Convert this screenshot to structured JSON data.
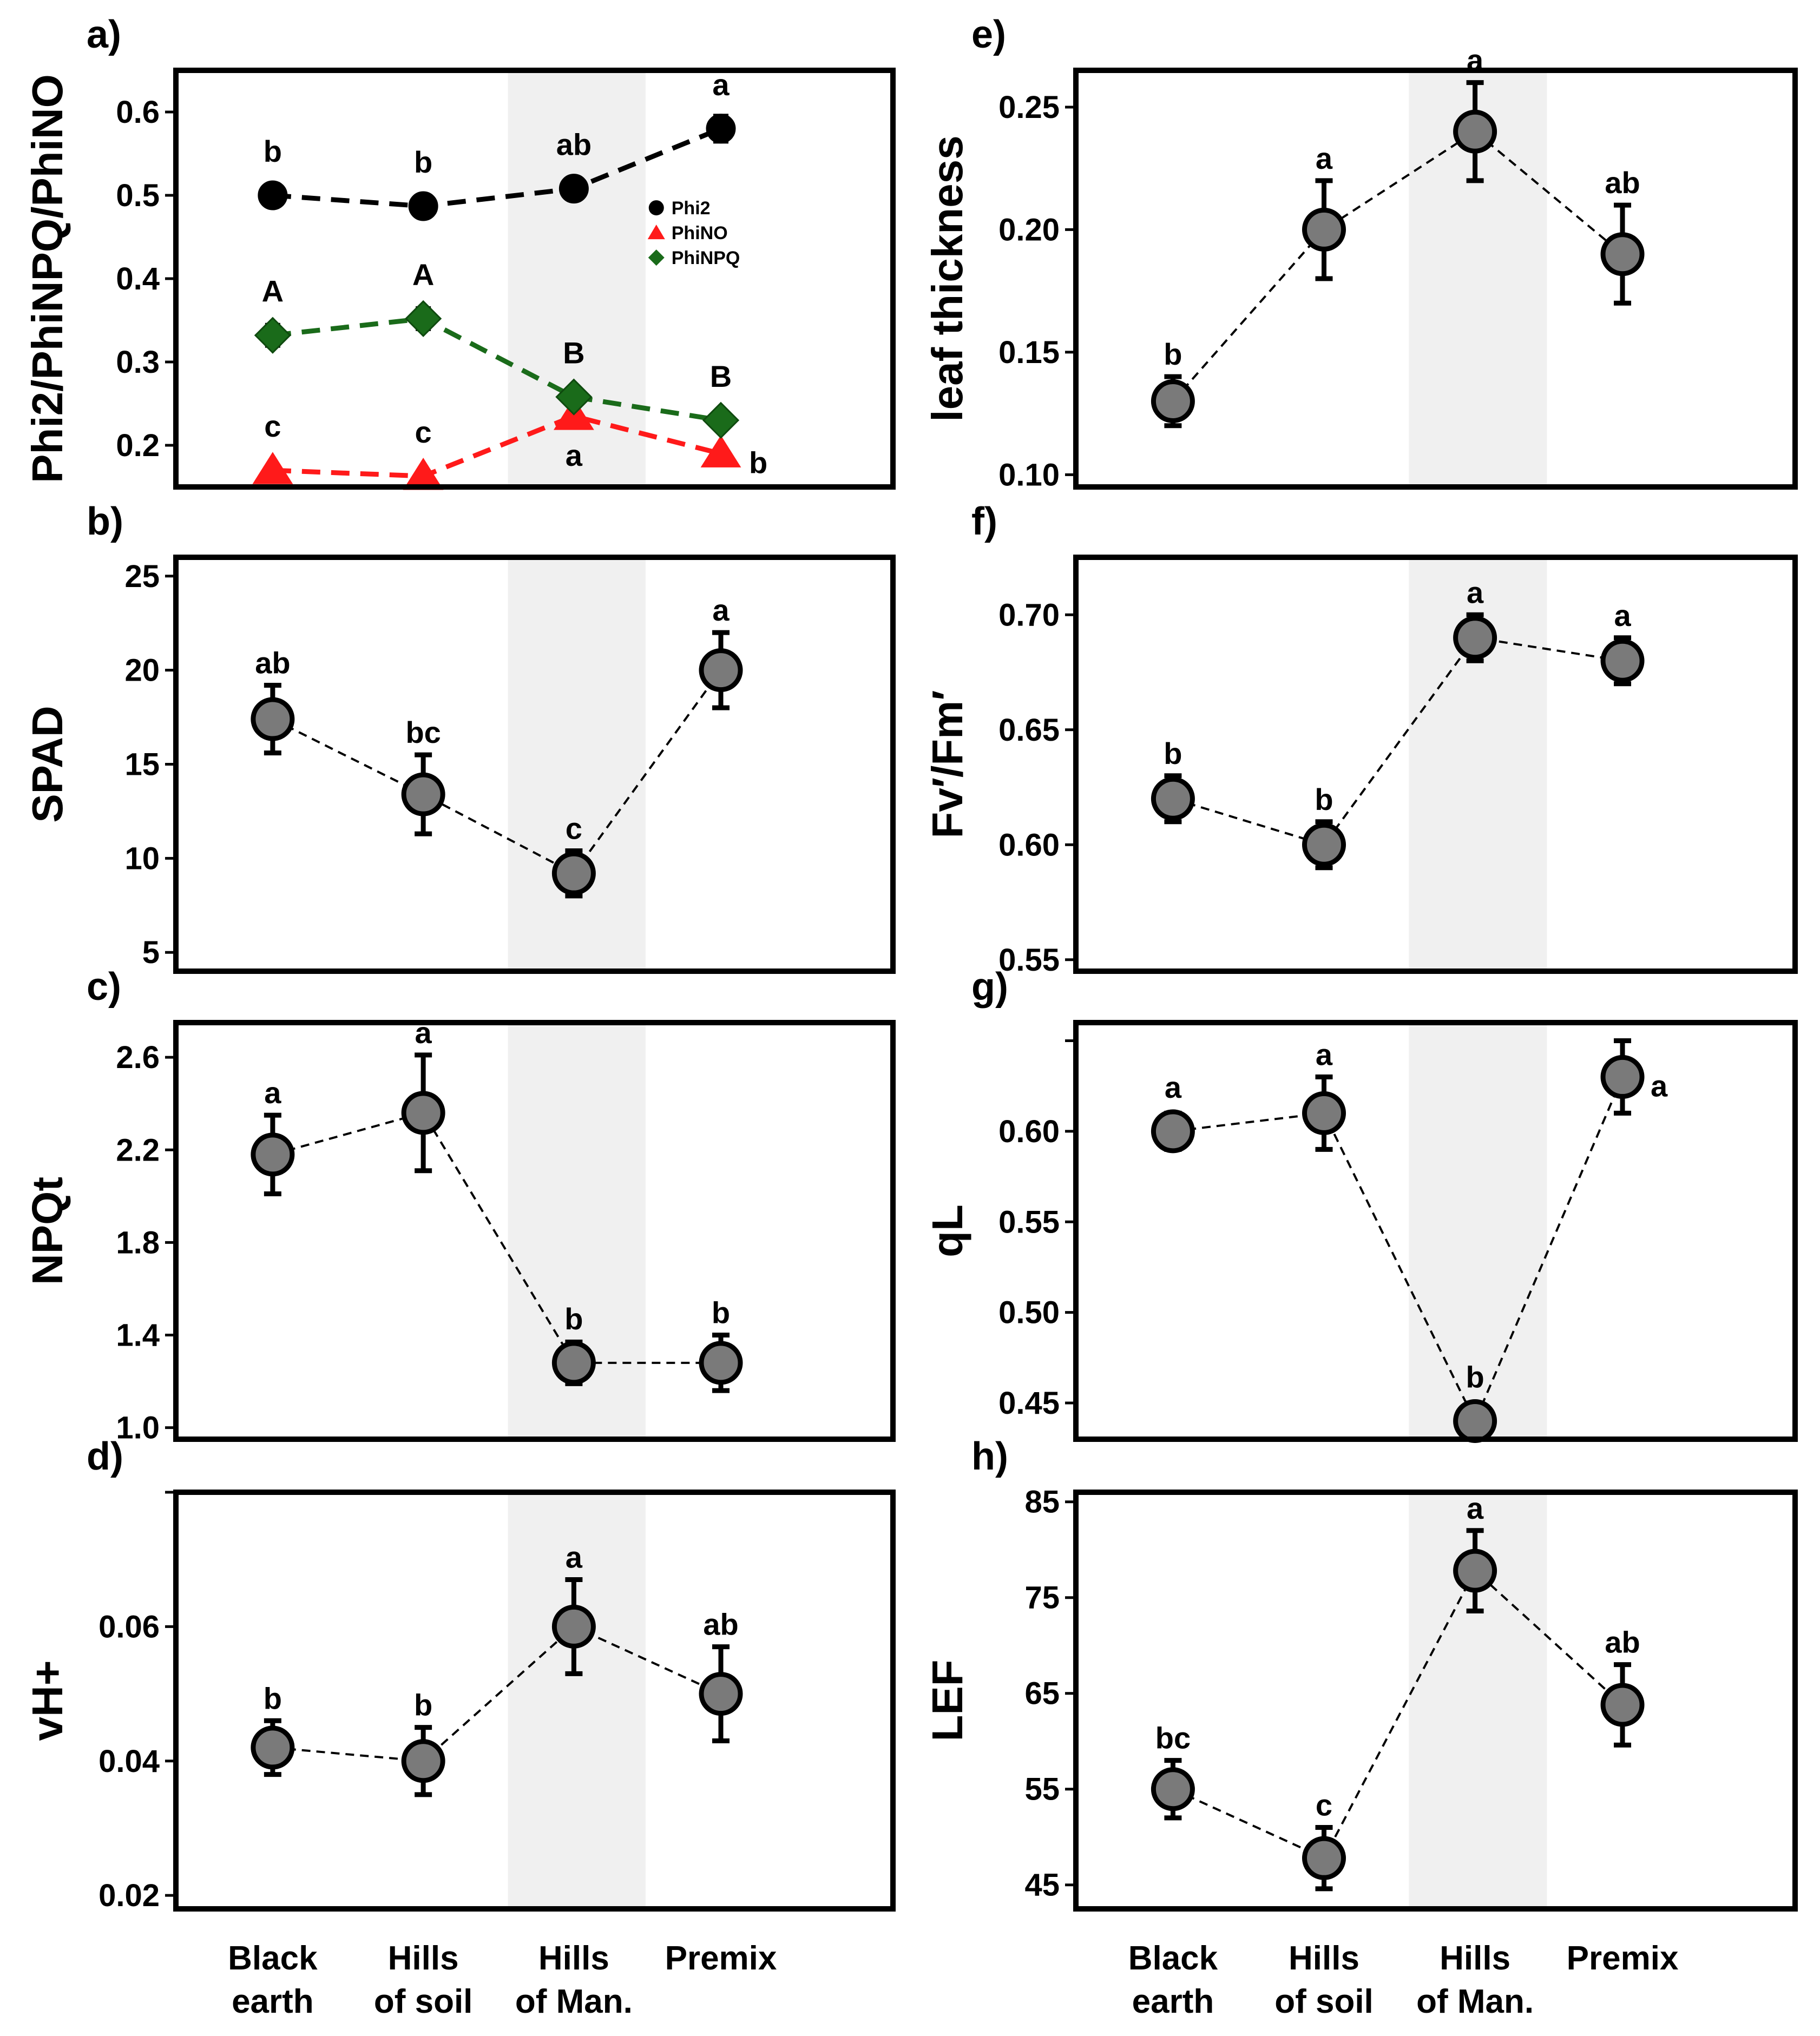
{
  "figure": {
    "x_categories": [
      {
        "line1": "Black",
        "line2": "earth"
      },
      {
        "line1": "Hills",
        "line2": "of soil"
      },
      {
        "line1": "Hills",
        "line2": "of Man."
      },
      {
        "line1": "Premix",
        "line2": ""
      }
    ],
    "shaded_category": "Hills of Man."
  },
  "chart_data": [
    {
      "panel": "a)",
      "type": "line",
      "ylabel": "Phi2/PhiNPQ/PhiNO",
      "ylim": [
        0.15,
        0.65
      ],
      "yticks": [
        0.2,
        0.3,
        0.4,
        0.5,
        0.6
      ],
      "ytick_labels": [
        "0.2",
        "0.3",
        "0.4",
        "0.5",
        "0.6"
      ],
      "categories": [
        "Black earth",
        "Hills of soil",
        "Hills of Man.",
        "Premix"
      ],
      "legend": {
        "placement": "top-right"
      },
      "series": [
        {
          "name": "Phi2",
          "color": "#000000",
          "marker": "circle",
          "values": [
            0.5,
            0.487,
            0.508,
            0.58
          ],
          "errors": [
            0.012,
            0.012,
            0.012,
            0.015
          ],
          "letters": [
            "b",
            "b",
            "ab",
            "a"
          ],
          "letter_pos": [
            "above",
            "above",
            "above",
            "above"
          ]
        },
        {
          "name": "PhiNO",
          "color": "#ff1a1a",
          "marker": "triangle",
          "values": [
            0.17,
            0.163,
            0.235,
            0.19
          ],
          "errors": [
            0,
            0,
            0,
            0
          ],
          "letters": [
            "c",
            "c",
            "a",
            "b"
          ],
          "letter_pos": [
            "above",
            "above",
            "below",
            "right"
          ]
        },
        {
          "name": "PhiNPQ",
          "color": "#1a6b1a",
          "marker": "diamond",
          "values": [
            0.332,
            0.352,
            0.258,
            0.23
          ],
          "errors": [
            0.012,
            0.012,
            0.008,
            0.005
          ],
          "letters": [
            "A",
            "A",
            "B",
            "B"
          ],
          "letter_pos": [
            "above",
            "above",
            "above",
            "above"
          ]
        }
      ]
    },
    {
      "panel": "b)",
      "type": "line",
      "ylabel": "SPAD",
      "ylim": [
        4,
        26
      ],
      "yticks": [
        5,
        10,
        15,
        20,
        25
      ],
      "ytick_labels": [
        "5",
        "10",
        "15",
        "20",
        "25"
      ],
      "categories": [
        "Black earth",
        "Hills of soil",
        "Hills of Man.",
        "Premix"
      ],
      "series": [
        {
          "name": "SPAD",
          "values": [
            17.4,
            13.4,
            9.2,
            20.0
          ],
          "errors": [
            1.8,
            2.1,
            1.2,
            2.0
          ],
          "letters": [
            "ab",
            "bc",
            "c",
            "a"
          ],
          "letter_pos": [
            "above",
            "above",
            "above",
            "above"
          ]
        }
      ]
    },
    {
      "panel": "c)",
      "type": "line",
      "ylabel": "NPQt",
      "ylim": [
        0.95,
        2.75
      ],
      "yticks": [
        1.0,
        1.4,
        1.8,
        2.2,
        2.6
      ],
      "ytick_labels": [
        "1.0",
        "1.4",
        "1.8",
        "2.2",
        "2.6"
      ],
      "categories": [
        "Black earth",
        "Hills of soil",
        "Hills of Man.",
        "Premix"
      ],
      "series": [
        {
          "name": "NPQt",
          "values": [
            2.18,
            2.36,
            1.28,
            1.28
          ],
          "errors": [
            0.17,
            0.25,
            0.09,
            0.12
          ],
          "letters": [
            "a",
            "a",
            "b",
            "b"
          ],
          "letter_pos": [
            "above",
            "above",
            "above",
            "above"
          ]
        }
      ]
    },
    {
      "panel": "d)",
      "type": "line",
      "ylabel": "vH+",
      "ylim": [
        0.018,
        0.08
      ],
      "yticks": [
        0.02,
        0.04,
        0.06
      ],
      "ytick_labels": [
        "0.02",
        "0.04",
        "0.06"
      ],
      "extra_ticks": [
        0.08
      ],
      "categories": [
        "Black earth",
        "Hills of soil",
        "Hills of Man.",
        "Premix"
      ],
      "series": [
        {
          "name": "vH+",
          "values": [
            0.042,
            0.04,
            0.06,
            0.05
          ],
          "errors": [
            0.004,
            0.005,
            0.007,
            0.007
          ],
          "letters": [
            "b",
            "b",
            "a",
            "ab"
          ],
          "letter_pos": [
            "above",
            "above",
            "above",
            "above"
          ]
        }
      ]
    },
    {
      "panel": "e)",
      "type": "line",
      "ylabel": "leaf thickness",
      "ylim": [
        0.095,
        0.265
      ],
      "yticks": [
        0.1,
        0.15,
        0.2,
        0.25
      ],
      "ytick_labels": [
        "0.10",
        "0.15",
        "0.20",
        "0.25"
      ],
      "categories": [
        "Black earth",
        "Hills of soil",
        "Hills of Man.",
        "Premix"
      ],
      "series": [
        {
          "name": "leaf thickness",
          "values": [
            0.13,
            0.2,
            0.24,
            0.19
          ],
          "errors": [
            0.01,
            0.02,
            0.02,
            0.02
          ],
          "letters": [
            "b",
            "a",
            "a",
            "ab"
          ],
          "letter_pos": [
            "above",
            "above",
            "above",
            "above"
          ]
        }
      ]
    },
    {
      "panel": "f)",
      "type": "line",
      "ylabel": "Fv′/Fm′",
      "ylim": [
        0.545,
        0.725
      ],
      "yticks": [
        0.55,
        0.6,
        0.65,
        0.7
      ],
      "ytick_labels": [
        "0.55",
        "0.60",
        "0.65",
        "0.70"
      ],
      "categories": [
        "Black earth",
        "Hills of soil",
        "Hills of Man.",
        "Premix"
      ],
      "series": [
        {
          "name": "Fv′/Fm′",
          "values": [
            0.62,
            0.6,
            0.69,
            0.68
          ],
          "errors": [
            0.01,
            0.01,
            0.01,
            0.01
          ],
          "letters": [
            "b",
            "b",
            "a",
            "a"
          ],
          "letter_pos": [
            "above",
            "above",
            "above",
            "above"
          ]
        }
      ]
    },
    {
      "panel": "g)",
      "type": "line",
      "ylabel": "qL",
      "ylim": [
        0.43,
        0.66
      ],
      "yticks": [
        0.45,
        0.5,
        0.55,
        0.6
      ],
      "ytick_labels": [
        "0.45",
        "0.50",
        "0.55",
        "0.60"
      ],
      "extra_ticks": [
        0.65
      ],
      "categories": [
        "Black earth",
        "Hills of soil",
        "Hills of Man.",
        "Premix"
      ],
      "series": [
        {
          "name": "qL",
          "values": [
            0.6,
            0.61,
            0.44,
            0.63
          ],
          "errors": [
            0.01,
            0.02,
            0.01,
            0.02
          ],
          "letters": [
            "a",
            "a",
            "b",
            "a"
          ],
          "letter_pos": [
            "above",
            "above",
            "above",
            "right"
          ]
        }
      ]
    },
    {
      "panel": "h)",
      "type": "line",
      "ylabel": "LEF",
      "ylim": [
        42.5,
        86
      ],
      "yticks": [
        45,
        55,
        65,
        75,
        85
      ],
      "ytick_labels": [
        "45",
        "55",
        "65",
        "75",
        "85"
      ],
      "categories": [
        "Black earth",
        "Hills of soil",
        "Hills of Man.",
        "Premix"
      ],
      "series": [
        {
          "name": "LEF",
          "values": [
            55.0,
            47.8,
            77.8,
            63.8
          ],
          "errors": [
            3.0,
            3.2,
            4.2,
            4.2
          ],
          "letters": [
            "bc",
            "c",
            "a",
            "ab"
          ],
          "letter_pos": [
            "above",
            "above",
            "above",
            "above"
          ]
        }
      ]
    }
  ]
}
